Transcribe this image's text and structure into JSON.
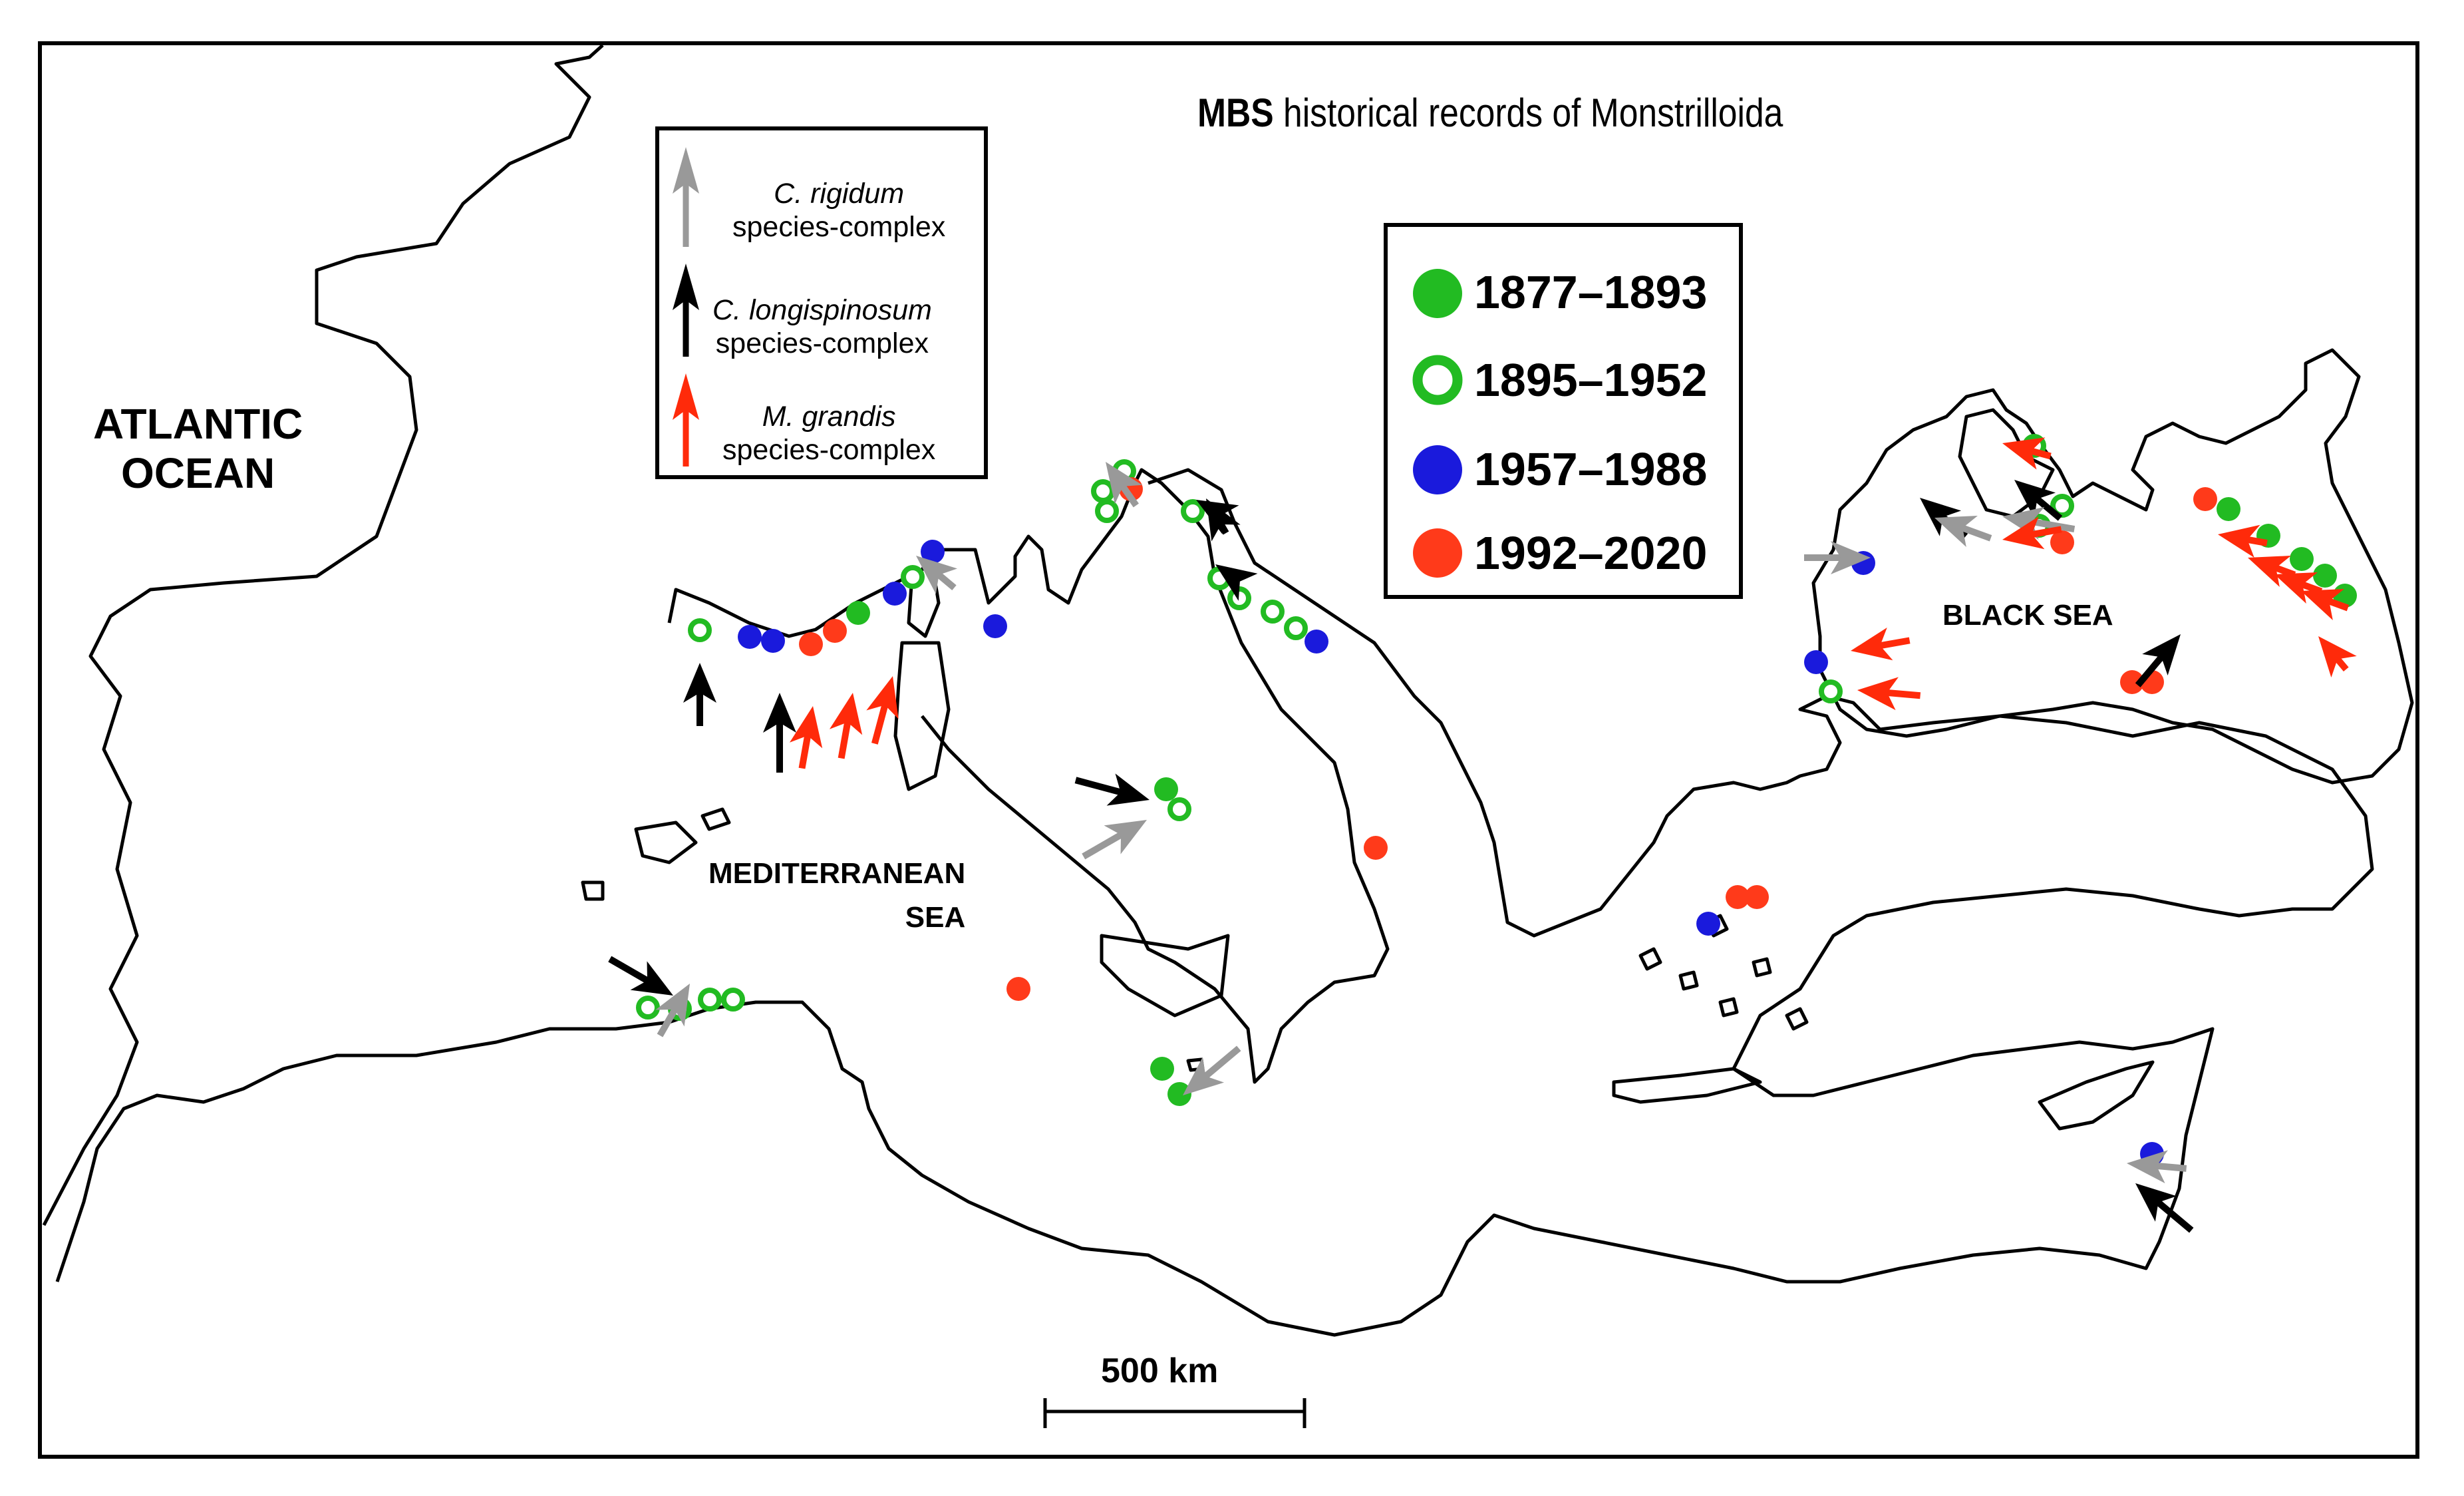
{
  "title": {
    "bold": "MBS",
    "rest": "historical records of Monstrilloida"
  },
  "regions": {
    "atlantic": [
      "ATLANTIC",
      "OCEAN"
    ],
    "mediterranean": [
      "MEDITERRANEAN",
      "SEA"
    ],
    "black_sea": "BLACK SEA"
  },
  "species_legend": [
    {
      "name": "C. rigidum",
      "suffix": "species-complex",
      "color": "#999999"
    },
    {
      "name": "C. longispinosum",
      "suffix": "species-complex",
      "color": "#000000"
    },
    {
      "name": "M. grandis",
      "suffix": "species-complex",
      "color": "#ff2a0a"
    }
  ],
  "period_legend": [
    {
      "label": "1877–1893",
      "color": "#22bb22",
      "fill": "solid"
    },
    {
      "label": "1895–1952",
      "color": "#22bb22",
      "fill": "ring"
    },
    {
      "label": "1957–1988",
      "color": "#1a1adc",
      "fill": "solid"
    },
    {
      "label": "1992–2020",
      "color": "#ff3a1a",
      "fill": "solid"
    }
  ],
  "scale_bar": {
    "label": "500 km"
  }
}
